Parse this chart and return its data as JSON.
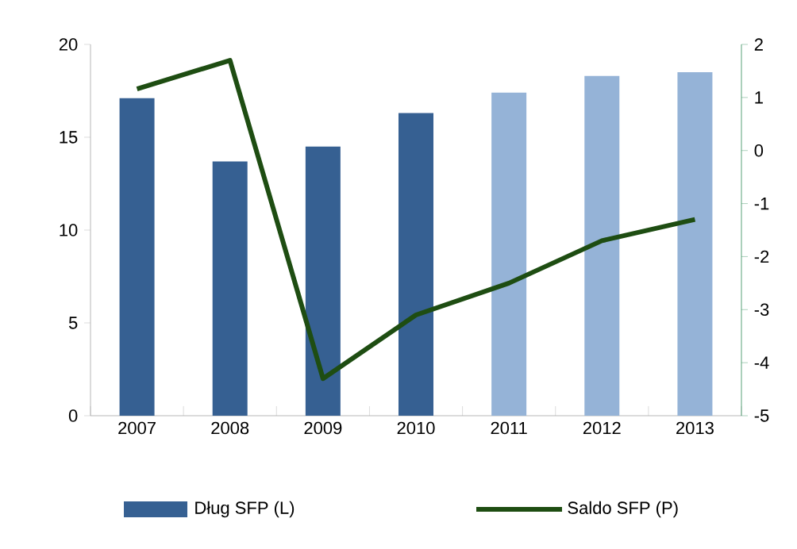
{
  "chart_data": {
    "type": "bar",
    "categories": [
      "2007",
      "2008",
      "2009",
      "2010",
      "2011",
      "2012",
      "2013"
    ],
    "series": [
      {
        "name": "Dług SFP (L)",
        "color": "#366092",
        "colors": [
          "#366092",
          "#366092",
          "#366092",
          "#366092",
          "#95b3d7",
          "#95b3d7",
          "#95b3d7"
        ],
        "values": [
          17.1,
          13.7,
          14.5,
          16.3,
          17.4,
          18.3,
          18.5
        ]
      },
      {
        "name": "Saldo SFP (P)",
        "type": "line",
        "axis": "y2",
        "color": "#1e4d12",
        "values": [
          1.16,
          1.7,
          -4.3,
          -3.1,
          -2.5,
          -1.7,
          -1.3
        ]
      }
    ],
    "ylim": [
      0,
      20
    ],
    "yticks": [
      0,
      5,
      10,
      15,
      20
    ],
    "y2lim": [
      -5,
      2
    ],
    "y2ticks": [
      -5,
      -4,
      -3,
      -2,
      -1,
      0,
      1,
      2
    ],
    "legend": "bottom"
  }
}
